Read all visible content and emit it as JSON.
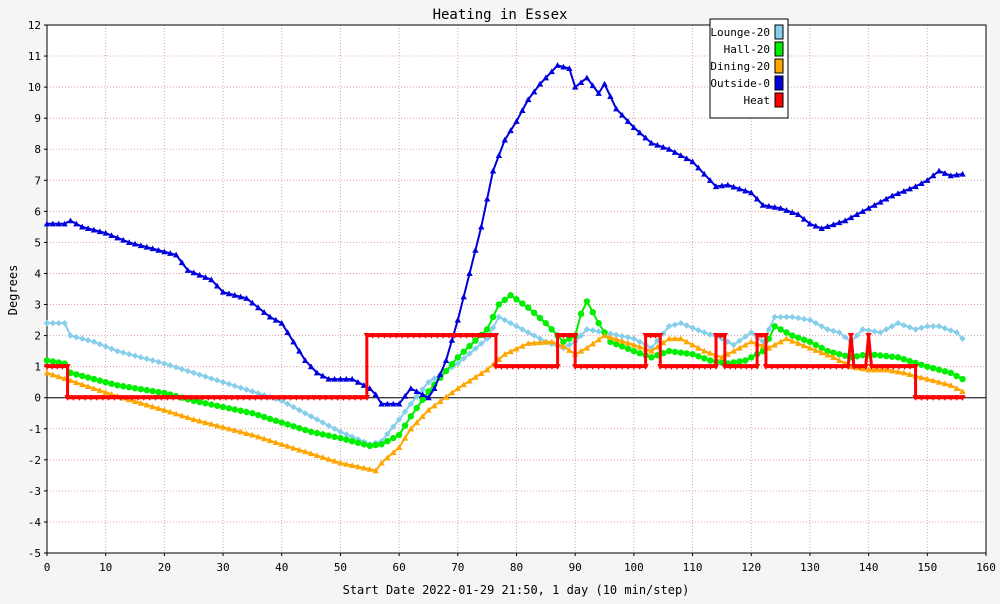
{
  "chart_data": {
    "type": "line",
    "title": "Heating in Essex",
    "xlabel": "Start Date 2022-01-29 21:50, 1 day (10 min/step)",
    "ylabel": "Degrees",
    "xlim": [
      0,
      160
    ],
    "ylim": [
      -5,
      12
    ],
    "x_ticks": [
      0,
      10,
      20,
      30,
      40,
      50,
      60,
      70,
      80,
      90,
      100,
      110,
      120,
      130,
      140,
      150,
      160
    ],
    "y_ticks": [
      -5,
      -4,
      -3,
      -2,
      -1,
      0,
      1,
      2,
      3,
      4,
      5,
      6,
      7,
      8,
      9,
      10,
      11,
      12
    ],
    "grid": true,
    "legend_position": "top-right",
    "series": [
      {
        "name": "Lounge-20",
        "color": "#87ceeb",
        "marker": "diamond",
        "points": [
          [
            0,
            2.4
          ],
          [
            3,
            2.4
          ],
          [
            4,
            2.0
          ],
          [
            8,
            1.8
          ],
          [
            12,
            1.5
          ],
          [
            20,
            1.1
          ],
          [
            25,
            0.8
          ],
          [
            30,
            0.5
          ],
          [
            35,
            0.2
          ],
          [
            40,
            -0.1
          ],
          [
            45,
            -0.6
          ],
          [
            50,
            -1.1
          ],
          [
            55,
            -1.5
          ],
          [
            57,
            -1.4
          ],
          [
            60,
            -0.7
          ],
          [
            62,
            -0.2
          ],
          [
            65,
            0.5
          ],
          [
            70,
            1.1
          ],
          [
            75,
            1.9
          ],
          [
            77,
            2.6
          ],
          [
            80,
            2.3
          ],
          [
            85,
            1.8
          ],
          [
            88,
            1.6
          ],
          [
            90,
            1.8
          ],
          [
            92,
            2.2
          ],
          [
            95,
            2.1
          ],
          [
            100,
            1.9
          ],
          [
            103,
            1.6
          ],
          [
            106,
            2.3
          ],
          [
            108,
            2.4
          ],
          [
            112,
            2.1
          ],
          [
            115,
            1.9
          ],
          [
            117,
            1.7
          ],
          [
            120,
            2.1
          ],
          [
            122,
            1.8
          ],
          [
            124,
            2.6
          ],
          [
            127,
            2.6
          ],
          [
            130,
            2.5
          ],
          [
            133,
            2.2
          ],
          [
            135,
            2.1
          ],
          [
            137,
            1.8
          ],
          [
            139,
            2.2
          ],
          [
            142,
            2.1
          ],
          [
            145,
            2.4
          ],
          [
            148,
            2.2
          ],
          [
            150,
            2.3
          ],
          [
            152,
            2.3
          ],
          [
            155,
            2.1
          ],
          [
            156,
            1.9
          ]
        ]
      },
      {
        "name": "Hall-20",
        "color": "#00ee00",
        "marker": "circle",
        "points": [
          [
            0,
            1.2
          ],
          [
            3,
            1.1
          ],
          [
            4,
            0.8
          ],
          [
            8,
            0.6
          ],
          [
            12,
            0.4
          ],
          [
            20,
            0.15
          ],
          [
            25,
            -0.1
          ],
          [
            30,
            -0.3
          ],
          [
            35,
            -0.5
          ],
          [
            40,
            -0.8
          ],
          [
            45,
            -1.1
          ],
          [
            50,
            -1.3
          ],
          [
            55,
            -1.55
          ],
          [
            57,
            -1.5
          ],
          [
            60,
            -1.2
          ],
          [
            62,
            -0.6
          ],
          [
            65,
            0.2
          ],
          [
            70,
            1.3
          ],
          [
            75,
            2.2
          ],
          [
            77,
            3.0
          ],
          [
            79,
            3.3
          ],
          [
            82,
            2.9
          ],
          [
            85,
            2.4
          ],
          [
            88,
            1.8
          ],
          [
            90,
            2.0
          ],
          [
            91,
            2.7
          ],
          [
            92,
            3.1
          ],
          [
            94,
            2.4
          ],
          [
            96,
            1.8
          ],
          [
            100,
            1.5
          ],
          [
            103,
            1.3
          ],
          [
            106,
            1.5
          ],
          [
            110,
            1.4
          ],
          [
            113,
            1.2
          ],
          [
            116,
            1.1
          ],
          [
            119,
            1.2
          ],
          [
            122,
            1.5
          ],
          [
            124,
            2.3
          ],
          [
            127,
            2.0
          ],
          [
            130,
            1.8
          ],
          [
            133,
            1.5
          ],
          [
            137,
            1.3
          ],
          [
            140,
            1.4
          ],
          [
            145,
            1.3
          ],
          [
            150,
            1.0
          ],
          [
            154,
            0.8
          ],
          [
            156,
            0.6
          ]
        ]
      },
      {
        "name": "Dining-20",
        "color": "#ffa500",
        "marker": "triangle",
        "points": [
          [
            0,
            0.8
          ],
          [
            4,
            0.55
          ],
          [
            8,
            0.3
          ],
          [
            12,
            0.05
          ],
          [
            20,
            -0.4
          ],
          [
            25,
            -0.7
          ],
          [
            30,
            -0.95
          ],
          [
            35,
            -1.2
          ],
          [
            40,
            -1.5
          ],
          [
            45,
            -1.8
          ],
          [
            50,
            -2.1
          ],
          [
            55,
            -2.3
          ],
          [
            56,
            -2.35
          ],
          [
            57,
            -2.1
          ],
          [
            60,
            -1.6
          ],
          [
            62,
            -1.0
          ],
          [
            65,
            -0.4
          ],
          [
            70,
            0.3
          ],
          [
            75,
            0.9
          ],
          [
            78,
            1.4
          ],
          [
            82,
            1.75
          ],
          [
            86,
            1.8
          ],
          [
            88,
            1.65
          ],
          [
            90,
            1.4
          ],
          [
            92,
            1.6
          ],
          [
            95,
            2.0
          ],
          [
            100,
            1.7
          ],
          [
            103,
            1.5
          ],
          [
            106,
            1.9
          ],
          [
            108,
            1.9
          ],
          [
            112,
            1.5
          ],
          [
            115,
            1.3
          ],
          [
            118,
            1.6
          ],
          [
            120,
            1.8
          ],
          [
            123,
            1.6
          ],
          [
            126,
            1.9
          ],
          [
            130,
            1.6
          ],
          [
            134,
            1.3
          ],
          [
            137,
            1.0
          ],
          [
            140,
            0.9
          ],
          [
            143,
            0.9
          ],
          [
            146,
            0.8
          ],
          [
            150,
            0.6
          ],
          [
            154,
            0.4
          ],
          [
            156,
            0.2
          ]
        ]
      },
      {
        "name": "Outside-0",
        "color": "#0000dd",
        "marker": "triangle",
        "points": [
          [
            0,
            5.6
          ],
          [
            3,
            5.6
          ],
          [
            4,
            5.7
          ],
          [
            6,
            5.5
          ],
          [
            10,
            5.3
          ],
          [
            14,
            5.0
          ],
          [
            18,
            4.8
          ],
          [
            22,
            4.6
          ],
          [
            24,
            4.1
          ],
          [
            28,
            3.8
          ],
          [
            30,
            3.4
          ],
          [
            34,
            3.2
          ],
          [
            38,
            2.6
          ],
          [
            40,
            2.4
          ],
          [
            42,
            1.8
          ],
          [
            44,
            1.2
          ],
          [
            46,
            0.8
          ],
          [
            48,
            0.6
          ],
          [
            52,
            0.6
          ],
          [
            55,
            0.3
          ],
          [
            56,
            0.1
          ],
          [
            57,
            -0.2
          ],
          [
            60,
            -0.2
          ],
          [
            62,
            0.3
          ],
          [
            64,
            0.1
          ],
          [
            65,
            0.0
          ],
          [
            66,
            0.3
          ],
          [
            68,
            1.2
          ],
          [
            70,
            2.5
          ],
          [
            72,
            4.0
          ],
          [
            74,
            5.5
          ],
          [
            76,
            7.3
          ],
          [
            78,
            8.3
          ],
          [
            80,
            8.9
          ],
          [
            82,
            9.6
          ],
          [
            84,
            10.1
          ],
          [
            86,
            10.5
          ],
          [
            87,
            10.7
          ],
          [
            89,
            10.6
          ],
          [
            90,
            10.0
          ],
          [
            92,
            10.3
          ],
          [
            94,
            9.8
          ],
          [
            95,
            10.1
          ],
          [
            97,
            9.3
          ],
          [
            100,
            8.7
          ],
          [
            103,
            8.2
          ],
          [
            106,
            8.0
          ],
          [
            110,
            7.6
          ],
          [
            112,
            7.2
          ],
          [
            114,
            6.8
          ],
          [
            116,
            6.85
          ],
          [
            120,
            6.6
          ],
          [
            122,
            6.2
          ],
          [
            125,
            6.1
          ],
          [
            128,
            5.9
          ],
          [
            130,
            5.6
          ],
          [
            132,
            5.45
          ],
          [
            136,
            5.7
          ],
          [
            140,
            6.1
          ],
          [
            144,
            6.5
          ],
          [
            148,
            6.8
          ],
          [
            150,
            7.0
          ],
          [
            152,
            7.3
          ],
          [
            154,
            7.15
          ],
          [
            156,
            7.2
          ]
        ]
      },
      {
        "name": "Heat",
        "color": "#ff0000",
        "marker": "triangle-down",
        "step": true,
        "points": [
          [
            0,
            1
          ],
          [
            3.5,
            1
          ],
          [
            3.5,
            0
          ],
          [
            54.5,
            0
          ],
          [
            54.5,
            2
          ],
          [
            76.5,
            2
          ],
          [
            76.5,
            1
          ],
          [
            87,
            1
          ],
          [
            87,
            2
          ],
          [
            90,
            2
          ],
          [
            90,
            1
          ],
          [
            102,
            1
          ],
          [
            102,
            2
          ],
          [
            104.5,
            2
          ],
          [
            104.5,
            1
          ],
          [
            114,
            1
          ],
          [
            114,
            2
          ],
          [
            115.5,
            2
          ],
          [
            115.5,
            1
          ],
          [
            121,
            1
          ],
          [
            121,
            2
          ],
          [
            122.5,
            2
          ],
          [
            122.5,
            1
          ],
          [
            136.5,
            1
          ],
          [
            137,
            2
          ],
          [
            137.5,
            1
          ],
          [
            139.5,
            1
          ],
          [
            140,
            2
          ],
          [
            140.5,
            1
          ],
          [
            148,
            1
          ],
          [
            148,
            0
          ],
          [
            156,
            0
          ]
        ]
      }
    ]
  }
}
